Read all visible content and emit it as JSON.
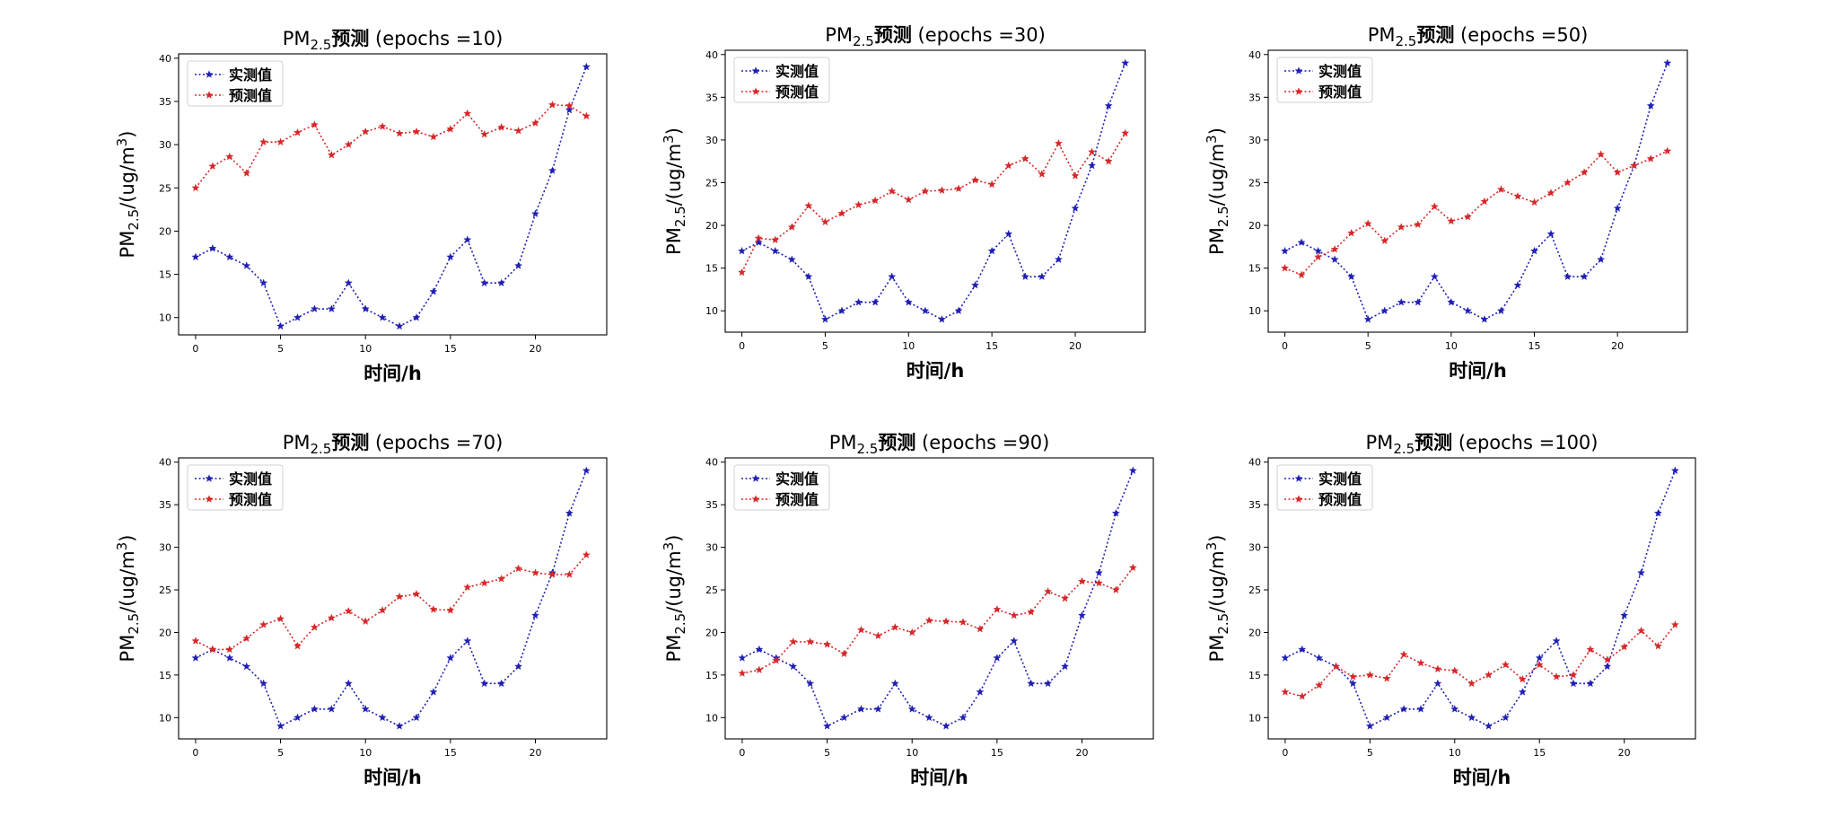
{
  "colors": {
    "actual": "#1f1fb4",
    "predicted": "#d62728"
  },
  "chart_data": [
    {
      "type": "line",
      "title_prefix": "PM",
      "title_sub": "2.5",
      "title_bold": "预测",
      "title_suffix": " (epochs =10)",
      "xlabel": "时间/h",
      "ylabel_prefix": "PM",
      "ylabel_sub": "2.5",
      "ylabel_rest": "/(ug/m",
      "ylabel_sup": "3",
      "ylabel_end": ")",
      "x": [
        0,
        1,
        2,
        3,
        4,
        5,
        6,
        7,
        8,
        9,
        10,
        11,
        12,
        13,
        14,
        15,
        16,
        17,
        18,
        19,
        20,
        21,
        22,
        23
      ],
      "xlim": [
        -1,
        24.2
      ],
      "ylim": [
        8.0,
        40.5
      ],
      "xticks": [
        0,
        5,
        10,
        15,
        20
      ],
      "yticks": [
        10,
        15,
        20,
        25,
        30,
        35,
        40
      ],
      "legend_position": "upper left",
      "series": [
        {
          "name": "实测值",
          "values": [
            17,
            18,
            17,
            16,
            14,
            9,
            10,
            11,
            11,
            14,
            11,
            10,
            9,
            10,
            13,
            17,
            19,
            14,
            14,
            16,
            22,
            27,
            34,
            39
          ]
        },
        {
          "name": "预测值",
          "values": [
            25.0,
            27.5,
            28.6,
            26.7,
            30.3,
            30.3,
            31.4,
            32.3,
            28.8,
            30.0,
            31.5,
            32.1,
            31.3,
            31.5,
            30.9,
            31.8,
            33.6,
            31.2,
            32.0,
            31.6,
            32.5,
            34.6,
            34.5,
            33.3
          ]
        }
      ]
    },
    {
      "type": "line",
      "title_prefix": "PM",
      "title_sub": "2.5",
      "title_bold": "预测",
      "title_suffix": " (epochs =30)",
      "xlabel": "时间/h",
      "ylabel_prefix": "PM",
      "ylabel_sub": "2.5",
      "ylabel_rest": "/(ug/m",
      "ylabel_sup": "3",
      "ylabel_end": ")",
      "x": [
        0,
        1,
        2,
        3,
        4,
        5,
        6,
        7,
        8,
        9,
        10,
        11,
        12,
        13,
        14,
        15,
        16,
        17,
        18,
        19,
        20,
        21,
        22,
        23
      ],
      "xlim": [
        -1,
        24.2
      ],
      "ylim": [
        7.5,
        40.5
      ],
      "xticks": [
        0,
        5,
        10,
        15,
        20
      ],
      "yticks": [
        10,
        15,
        20,
        25,
        30,
        35,
        40
      ],
      "legend_position": "upper left",
      "series": [
        {
          "name": "实测值",
          "values": [
            17,
            18,
            17,
            16,
            14,
            9,
            10,
            11,
            11,
            14,
            11,
            10,
            9,
            10,
            13,
            17,
            19,
            14,
            14,
            16,
            22,
            27,
            34,
            39
          ]
        },
        {
          "name": "预测值",
          "values": [
            14.5,
            18.5,
            18.3,
            19.8,
            22.3,
            20.4,
            21.4,
            22.4,
            22.9,
            24.0,
            23.0,
            24.0,
            24.1,
            24.3,
            25.3,
            24.8,
            27.0,
            27.8,
            26.0,
            29.6,
            25.8,
            28.6,
            27.5,
            30.8
          ]
        }
      ]
    },
    {
      "type": "line",
      "title_prefix": "PM",
      "title_sub": "2.5",
      "title_bold": "预测",
      "title_suffix": " (epochs =50)",
      "xlabel": "时间/h",
      "ylabel_prefix": "PM",
      "ylabel_sub": "2.5",
      "ylabel_rest": "/(ug/m",
      "ylabel_sup": "3",
      "ylabel_end": ")",
      "x": [
        0,
        1,
        2,
        3,
        4,
        5,
        6,
        7,
        8,
        9,
        10,
        11,
        12,
        13,
        14,
        15,
        16,
        17,
        18,
        19,
        20,
        21,
        22,
        23
      ],
      "xlim": [
        -1,
        24.2
      ],
      "ylim": [
        7.5,
        40.5
      ],
      "xticks": [
        0,
        5,
        10,
        15,
        20
      ],
      "yticks": [
        10,
        15,
        20,
        25,
        30,
        35,
        40
      ],
      "legend_position": "upper left",
      "series": [
        {
          "name": "实测值",
          "values": [
            17,
            18,
            17,
            16,
            14,
            9,
            10,
            11,
            11,
            14,
            11,
            10,
            9,
            10,
            13,
            17,
            19,
            14,
            14,
            16,
            22,
            27,
            34,
            39
          ]
        },
        {
          "name": "预测值",
          "values": [
            15.0,
            14.2,
            16.3,
            17.2,
            19.1,
            20.2,
            18.2,
            19.8,
            20.1,
            22.2,
            20.5,
            21.0,
            22.8,
            24.2,
            23.4,
            22.7,
            23.8,
            25.0,
            26.2,
            28.3,
            26.2,
            27.0,
            27.8,
            28.7
          ]
        }
      ]
    },
    {
      "type": "line",
      "title_prefix": "PM",
      "title_sub": "2.5",
      "title_bold": "预测",
      "title_suffix": " (epochs =70)",
      "xlabel": "时间/h",
      "ylabel_prefix": "PM",
      "ylabel_sub": "2.5",
      "ylabel_rest": "/(ug/m",
      "ylabel_sup": "3",
      "ylabel_end": ")",
      "x": [
        0,
        1,
        2,
        3,
        4,
        5,
        6,
        7,
        8,
        9,
        10,
        11,
        12,
        13,
        14,
        15,
        16,
        17,
        18,
        19,
        20,
        21,
        22,
        23
      ],
      "xlim": [
        -1,
        24.2
      ],
      "ylim": [
        7.5,
        40.5
      ],
      "xticks": [
        0,
        5,
        10,
        15,
        20
      ],
      "yticks": [
        10,
        15,
        20,
        25,
        30,
        35,
        40
      ],
      "legend_position": "upper left",
      "series": [
        {
          "name": "实测值",
          "values": [
            17,
            18,
            17,
            16,
            14,
            9,
            10,
            11,
            11,
            14,
            11,
            10,
            9,
            10,
            13,
            17,
            19,
            14,
            14,
            16,
            22,
            27,
            34,
            39
          ]
        },
        {
          "name": "预测值",
          "values": [
            19.0,
            18.0,
            18.0,
            19.3,
            20.9,
            21.6,
            18.4,
            20.6,
            21.7,
            22.5,
            21.3,
            22.6,
            24.2,
            24.5,
            22.7,
            22.6,
            25.3,
            25.8,
            26.3,
            27.5,
            27.0,
            26.8,
            26.8,
            29.1
          ]
        }
      ]
    },
    {
      "type": "line",
      "title_prefix": "PM",
      "title_sub": "2.5",
      "title_bold": "预测",
      "title_suffix": " (epochs =90)",
      "xlabel": "时间/h",
      "ylabel_prefix": "PM",
      "ylabel_sub": "2.5",
      "ylabel_rest": "/(ug/m",
      "ylabel_sup": "3",
      "ylabel_end": ")",
      "x": [
        0,
        1,
        2,
        3,
        4,
        5,
        6,
        7,
        8,
        9,
        10,
        11,
        12,
        13,
        14,
        15,
        16,
        17,
        18,
        19,
        20,
        21,
        22,
        23
      ],
      "xlim": [
        -1,
        24.2
      ],
      "ylim": [
        7.5,
        40.5
      ],
      "xticks": [
        0,
        5,
        10,
        15,
        20
      ],
      "yticks": [
        10,
        15,
        20,
        25,
        30,
        35,
        40
      ],
      "legend_position": "upper left",
      "series": [
        {
          "name": "实测值",
          "values": [
            17,
            18,
            17,
            16,
            14,
            9,
            10,
            11,
            11,
            14,
            11,
            10,
            9,
            10,
            13,
            17,
            19,
            14,
            14,
            16,
            22,
            27,
            34,
            39
          ]
        },
        {
          "name": "预测值",
          "values": [
            15.2,
            15.6,
            16.7,
            18.9,
            18.9,
            18.6,
            17.5,
            20.3,
            19.6,
            20.6,
            20.0,
            21.4,
            21.3,
            21.2,
            20.4,
            22.7,
            22.0,
            22.4,
            24.8,
            24.0,
            26.0,
            25.8,
            25.0,
            27.6
          ]
        }
      ]
    },
    {
      "type": "line",
      "title_prefix": "PM",
      "title_sub": "2.5",
      "title_bold": "预测",
      "title_suffix": " (epochs =100)",
      "xlabel": "时间/h",
      "ylabel_prefix": "PM",
      "ylabel_sub": "2.5",
      "ylabel_rest": "/(ug/m",
      "ylabel_sup": "3",
      "ylabel_end": ")",
      "x": [
        0,
        1,
        2,
        3,
        4,
        5,
        6,
        7,
        8,
        9,
        10,
        11,
        12,
        13,
        14,
        15,
        16,
        17,
        18,
        19,
        20,
        21,
        22,
        23
      ],
      "xlim": [
        -1,
        24.2
      ],
      "ylim": [
        7.5,
        40.5
      ],
      "xticks": [
        0,
        5,
        10,
        15,
        20
      ],
      "yticks": [
        10,
        15,
        20,
        25,
        30,
        35,
        40
      ],
      "legend_position": "upper left",
      "series": [
        {
          "name": "实测值",
          "values": [
            17,
            18,
            17,
            16,
            14,
            9,
            10,
            11,
            11,
            14,
            11,
            10,
            9,
            10,
            13,
            17,
            19,
            14,
            14,
            16,
            22,
            27,
            34,
            39
          ]
        },
        {
          "name": "预测值",
          "values": [
            13.0,
            12.5,
            13.8,
            16.0,
            14.8,
            15.0,
            14.6,
            17.4,
            16.4,
            15.7,
            15.5,
            14.0,
            15.0,
            16.2,
            14.5,
            16.2,
            14.8,
            15.0,
            18.0,
            16.8,
            18.3,
            20.2,
            18.4,
            20.9
          ]
        }
      ]
    }
  ]
}
